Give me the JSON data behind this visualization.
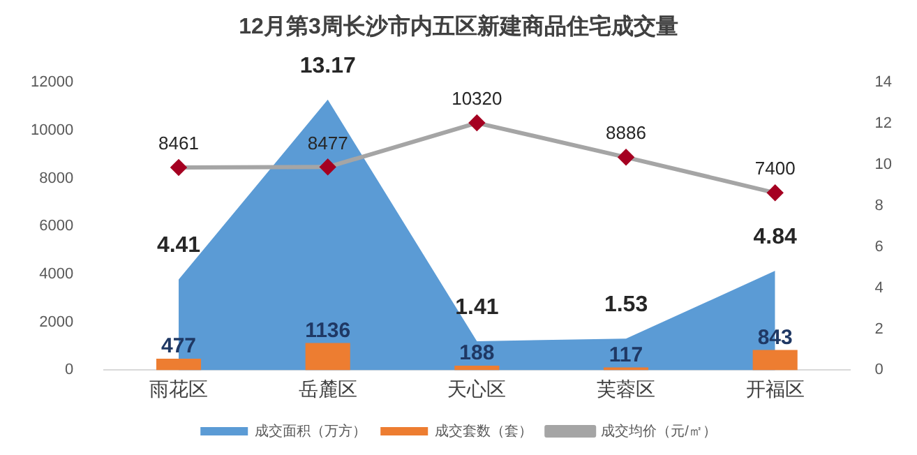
{
  "chart_data": {
    "type": "bar",
    "title": "12月第3周长沙市内五区新建商品住宅成交量",
    "categories": [
      "雨花区",
      "岳麓区",
      "天心区",
      "芙蓉区",
      "开福区"
    ],
    "series": [
      {
        "name": "成交面积（万方）",
        "type": "area",
        "axis": "y2",
        "color": "#5b9bd5",
        "values": [
          4.41,
          13.17,
          1.41,
          1.53,
          4.84
        ]
      },
      {
        "name": "成交套数（套）",
        "color": "#ed7d31",
        "values": [
          477,
          1136,
          188,
          117,
          843
        ]
      },
      {
        "name": "成交均价（元/㎡）",
        "type": "line",
        "color": "#a5a5a5",
        "marker": "diamond",
        "values": [
          8461,
          8477,
          10320,
          8886,
          7400
        ]
      }
    ],
    "ylim": [
      0,
      12000
    ],
    "yticks": [
      0,
      2000,
      4000,
      6000,
      8000,
      10000,
      12000
    ],
    "y2lim": [
      0,
      14
    ],
    "y2ticks": [
      0,
      2,
      4,
      6,
      8,
      10,
      12,
      14
    ],
    "data_labels": true,
    "legend": "bottom",
    "grid": false
  }
}
